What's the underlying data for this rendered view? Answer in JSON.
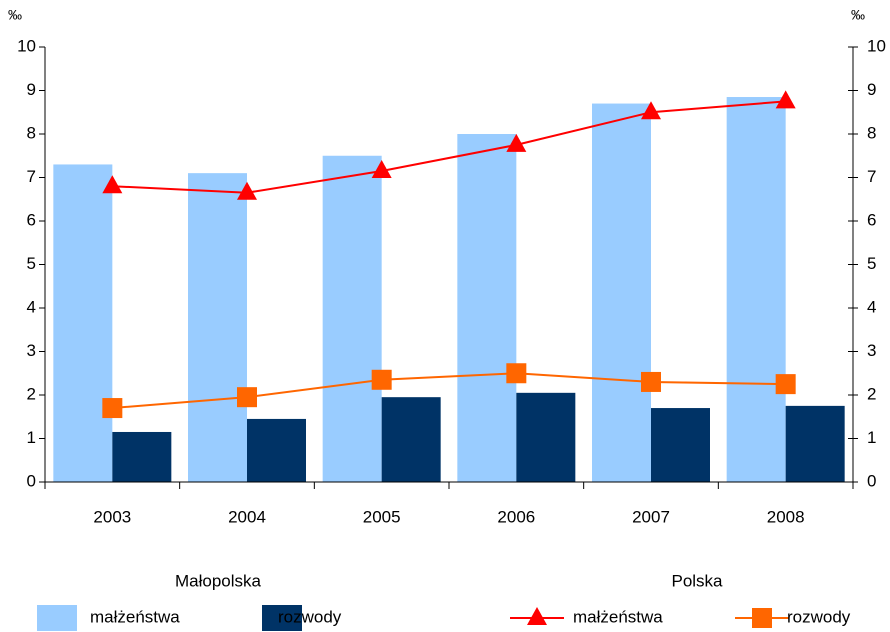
{
  "chart_data": {
    "type": "bar",
    "categories": [
      "2003",
      "2004",
      "2005",
      "2006",
      "2007",
      "2008"
    ],
    "series": [
      {
        "name": "małżeństwa",
        "type": "bar",
        "color": "#99ccff",
        "values": [
          7.3,
          7.1,
          7.5,
          8.0,
          8.7,
          8.85
        ]
      },
      {
        "name": "rozwody",
        "type": "bar",
        "color": "#003366",
        "values": [
          1.15,
          1.45,
          1.95,
          2.05,
          1.7,
          1.75
        ]
      },
      {
        "name": "małżeństwa",
        "type": "line",
        "axis": "y2",
        "marker": "triangle",
        "color": "#ff0000",
        "values": [
          6.8,
          6.65,
          7.15,
          7.75,
          8.5,
          8.75
        ]
      },
      {
        "name": "rozwody",
        "type": "line",
        "axis": "y2",
        "marker": "square",
        "color": "#ff6600",
        "values": [
          1.7,
          1.95,
          2.35,
          2.5,
          2.3,
          2.25
        ]
      }
    ],
    "legend_groups": [
      "Małopolska",
      "Polska"
    ],
    "y_unit": "‰",
    "y2_unit": "‰",
    "ylim": [
      0,
      10
    ],
    "yticks": [
      0,
      1,
      2,
      3,
      4,
      5,
      6,
      7,
      8,
      9,
      10
    ],
    "y2lim": [
      0,
      10
    ],
    "y2ticks": [
      0,
      1,
      2,
      3,
      4,
      5,
      6,
      7,
      8,
      9,
      10
    ],
    "grid": false
  }
}
